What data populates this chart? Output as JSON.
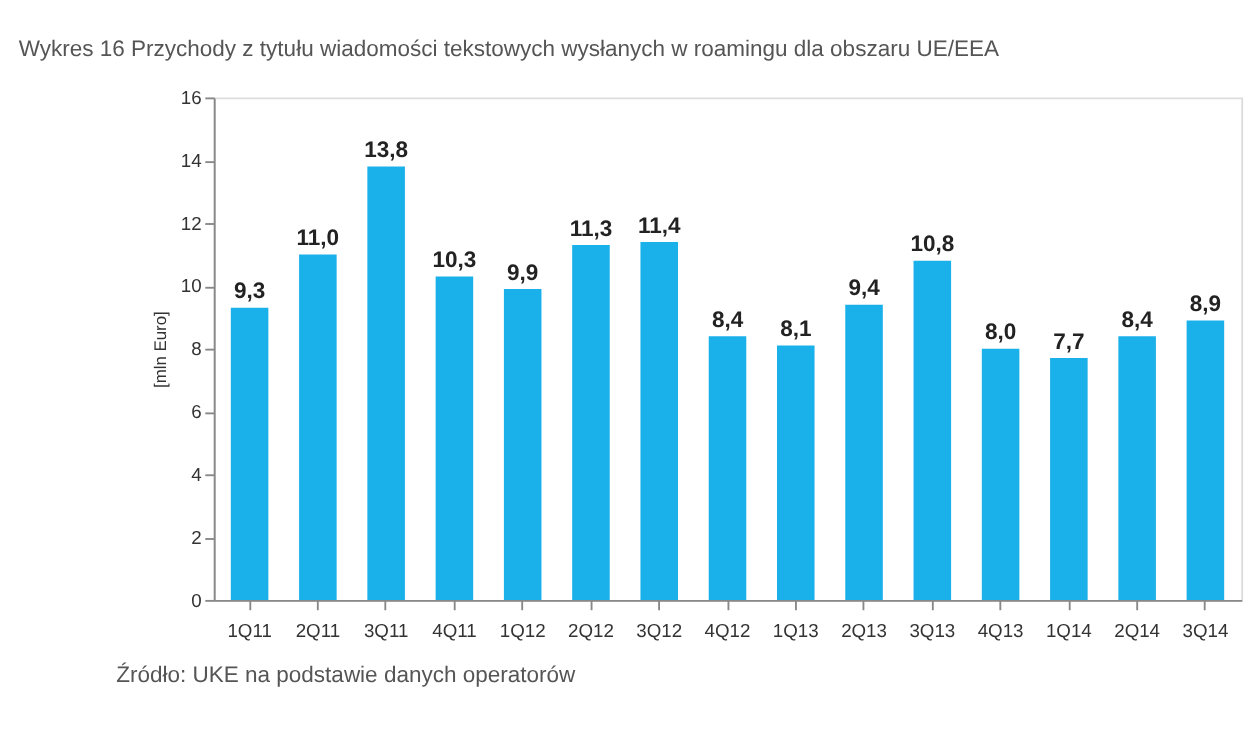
{
  "chart_data": {
    "type": "bar",
    "title": "Wykres 16 Przychody z tytułu wiadomości tekstowych wysłanych w roamingu dla obszaru UE/EEA",
    "ylabel": "[mln Euro]",
    "categories": [
      "1Q11",
      "2Q11",
      "3Q11",
      "4Q11",
      "1Q12",
      "2Q12",
      "3Q12",
      "4Q12",
      "1Q13",
      "2Q13",
      "3Q13",
      "4Q13",
      "1Q14",
      "2Q14",
      "3Q14"
    ],
    "values": [
      9.3,
      11.0,
      13.8,
      10.3,
      9.9,
      11.3,
      11.4,
      8.4,
      8.1,
      9.4,
      10.8,
      8.0,
      7.7,
      8.4,
      8.9
    ],
    "value_labels": [
      "9,3",
      "11,0",
      "13,8",
      "10,3",
      "9,9",
      "11,3",
      "11,4",
      "8,4",
      "8,1",
      "9,4",
      "10,8",
      "8,0",
      "7,7",
      "8,4",
      "8,9"
    ],
    "color": "#1ab0ea",
    "ylim": [
      0,
      16
    ],
    "yticks": [
      0,
      2,
      4,
      6,
      8,
      10,
      12,
      14,
      16
    ],
    "grid": false,
    "annotations": [
      "Źródło: UKE na podstawie danych operatorów"
    ]
  }
}
